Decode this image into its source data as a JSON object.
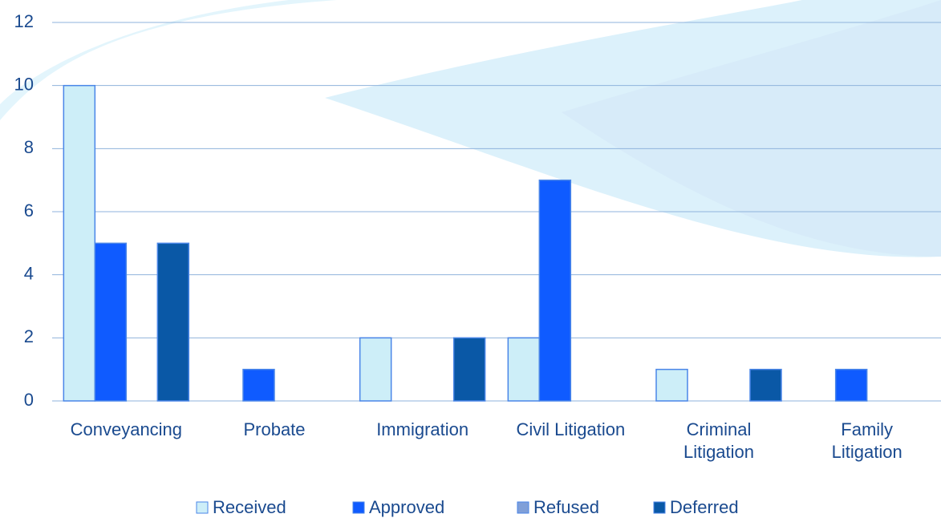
{
  "chart_data": {
    "type": "bar",
    "categories": [
      "Conveyancing",
      "Probate",
      "Immigration",
      "Civil Litigation",
      "Criminal\nLitigation",
      "Family\nLitigation"
    ],
    "series": [
      {
        "name": "Received",
        "color": "#cdeef8",
        "values": [
          10,
          0,
          2,
          2,
          1,
          0
        ]
      },
      {
        "name": "Approved",
        "color": "#0f5bff",
        "values": [
          5,
          1,
          0,
          7,
          0,
          1
        ]
      },
      {
        "name": "Refused",
        "color": "#7f9fd8",
        "values": [
          0,
          0,
          0,
          0,
          0,
          0
        ]
      },
      {
        "name": "Deferred",
        "color": "#0a58a6",
        "values": [
          5,
          0,
          2,
          0,
          1,
          0
        ]
      }
    ],
    "ylim": [
      0,
      12
    ],
    "yticks": [
      0,
      2,
      4,
      6,
      8,
      10,
      12
    ],
    "grid": true
  }
}
